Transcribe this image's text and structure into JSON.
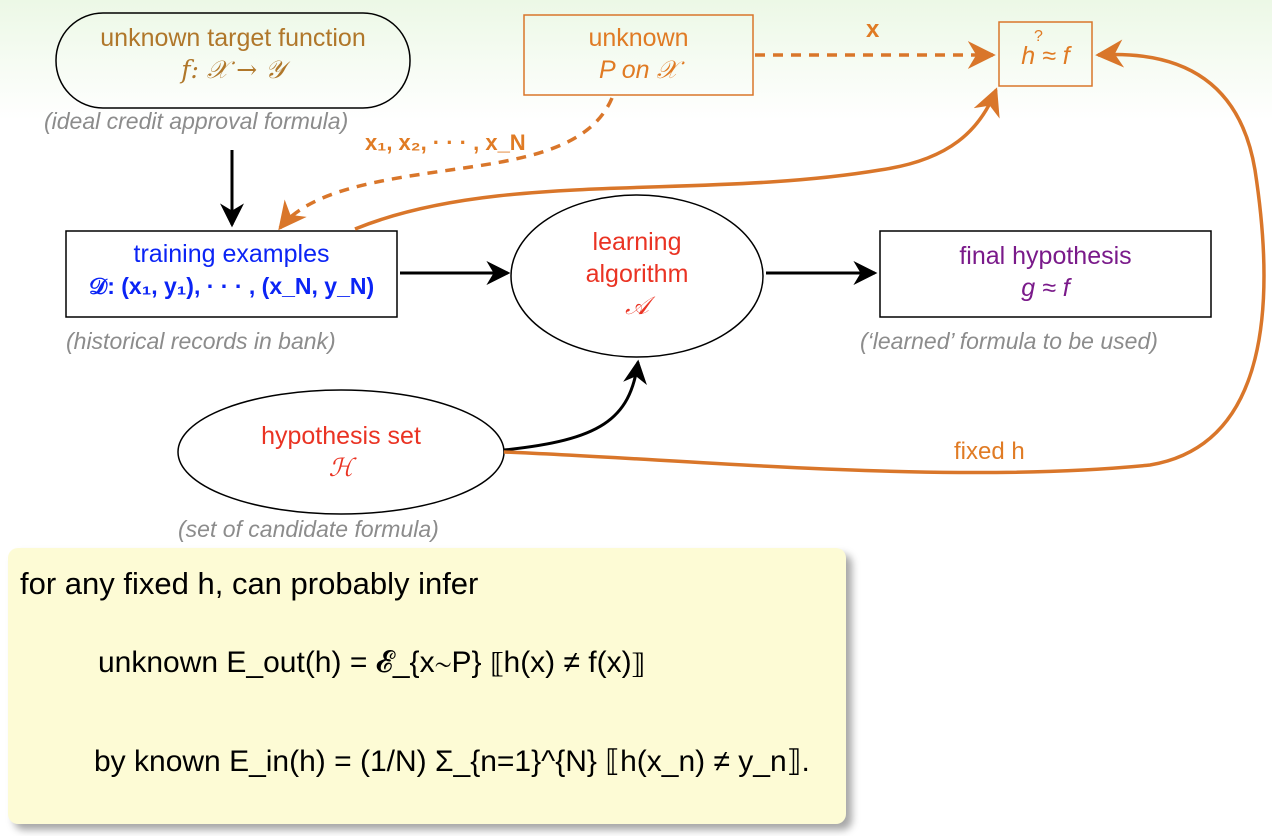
{
  "nodes": {
    "target": {
      "line1": "unknown target function",
      "line2": "f: 𝒳 → 𝒴",
      "caption": "(ideal credit approval formula)"
    },
    "distribution": {
      "line1": "unknown",
      "line2": "P on 𝒳"
    },
    "check": {
      "label": "h ≈ f",
      "question": "?"
    },
    "training": {
      "line1": "training examples",
      "line2": "𝒟: (x₁, y₁), · · · , (x_N, y_N)",
      "caption": "(historical records in bank)"
    },
    "algorithm": {
      "line1": "learning",
      "line2": "algorithm",
      "line3": "𝒜"
    },
    "final": {
      "line1": "final hypothesis",
      "line2": "g ≈ f",
      "caption": "(‘learned’ formula to be used)"
    },
    "hypothesis_set": {
      "line1": "hypothesis set",
      "line2": "ℋ",
      "caption": "(set of candidate formula)"
    }
  },
  "edge_labels": {
    "x": "x",
    "samples": "x₁, x₂, · · · , x_N",
    "fixed_h": "fixed h"
  },
  "box": {
    "intro": "for any fixed h, can probably infer",
    "line1": "unknown E_out(h) = 𝓔_{x∼P} ⟦h(x) ≠ f(x)⟧",
    "line2": "by known E_in(h) = (1/N) Σ_{n=1}^{N} ⟦h(x_n) ≠ y_n⟧."
  },
  "colors": {
    "orange": "#e07b24",
    "blue": "#0b24f5",
    "red": "#ea3323",
    "purple": "#7a1a8a",
    "brown": "#b0772a",
    "box_bg": "#fdfbd5"
  }
}
